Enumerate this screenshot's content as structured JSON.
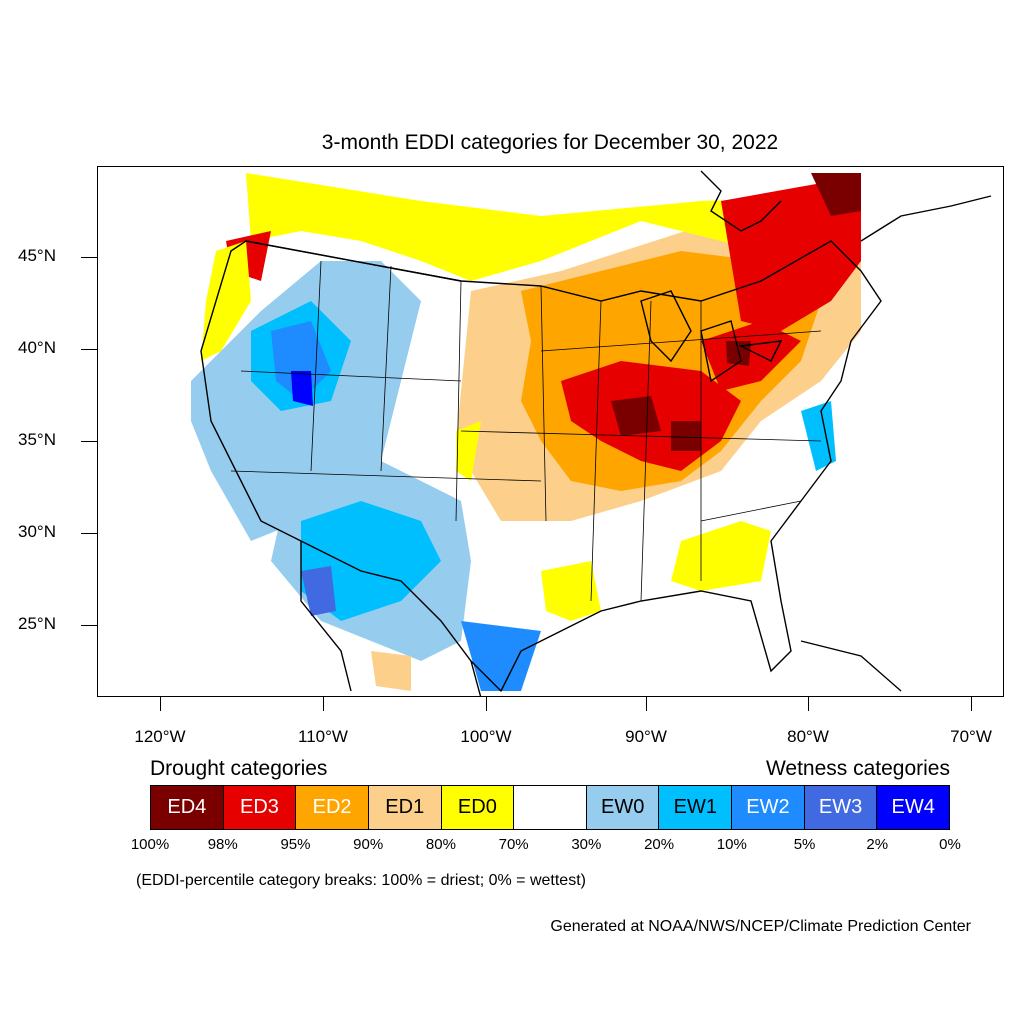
{
  "title": "3-month EDDI categories for December 30, 2022",
  "lat_labels": [
    "45°N",
    "40°N",
    "35°N",
    "30°N",
    "25°N"
  ],
  "lon_labels": [
    "120°W",
    "110°W",
    "100°W",
    "90°W",
    "80°W",
    "70°W"
  ],
  "legend": {
    "drought_title": "Drought categories",
    "wetness_title": "Wetness categories",
    "categories": [
      {
        "label": "ED4",
        "color": "#7a0000",
        "text_color": "#ffffff"
      },
      {
        "label": "ED3",
        "color": "#e60000",
        "text_color": "#ffffff"
      },
      {
        "label": "ED2",
        "color": "#ffa500",
        "text_color": "#ffffff"
      },
      {
        "label": "ED1",
        "color": "#fcd08a",
        "text_color": "#000000"
      },
      {
        "label": "ED0",
        "color": "#ffff00",
        "text_color": "#000000"
      },
      {
        "label": "",
        "color": "#ffffff",
        "text_color": "#000000"
      },
      {
        "label": "EW0",
        "color": "#96cdef",
        "text_color": "#000000"
      },
      {
        "label": "EW1",
        "color": "#00bfff",
        "text_color": "#000000"
      },
      {
        "label": "EW2",
        "color": "#1e8cff",
        "text_color": "#ffffff"
      },
      {
        "label": "EW3",
        "color": "#4169e1",
        "text_color": "#ffffff"
      },
      {
        "label": "EW4",
        "color": "#0000ff",
        "text_color": "#ffffff"
      }
    ],
    "percentiles": [
      "100%",
      "98%",
      "95%",
      "90%",
      "80%",
      "70%",
      "30%",
      "20%",
      "10%",
      "5%",
      "2%",
      "0%"
    ]
  },
  "breaks_note": "(EDDI-percentile category breaks: 100% = driest; 0% = wettest)",
  "credit": "Generated at NOAA/NWS/NCEP/Climate Prediction Center"
}
